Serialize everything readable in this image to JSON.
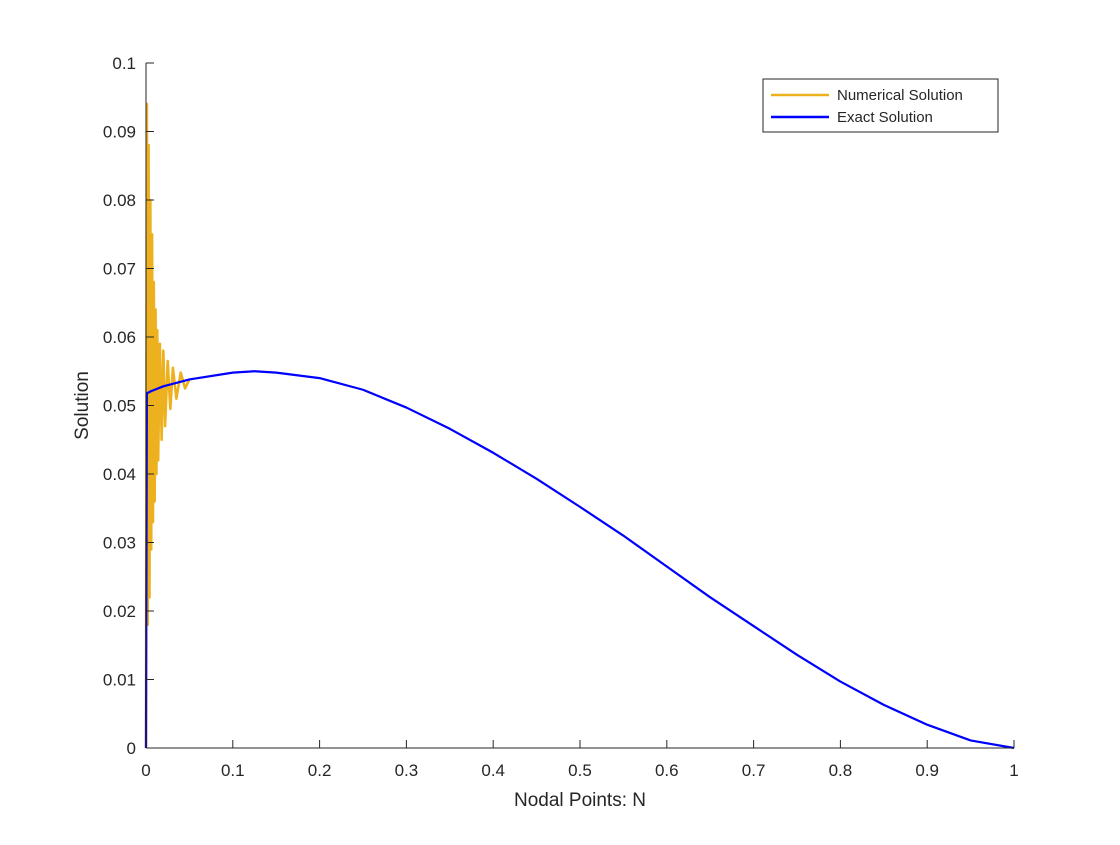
{
  "chart_data": {
    "type": "line",
    "title": "",
    "xlabel": "Nodal Points: N",
    "ylabel": "Solution",
    "xlim": [
      0,
      1
    ],
    "ylim": [
      0,
      0.1
    ],
    "grid": false,
    "legend_position": "top-right",
    "x_ticks": [
      "0",
      "0.1",
      "0.2",
      "0.3",
      "0.4",
      "0.5",
      "0.6",
      "0.7",
      "0.8",
      "0.9",
      "1"
    ],
    "y_ticks": [
      "0",
      "0.01",
      "0.02",
      "0.03",
      "0.04",
      "0.05",
      "0.06",
      "0.07",
      "0.08",
      "0.09",
      "0.1"
    ],
    "series": [
      {
        "name": "Numerical Solution",
        "color": "#EDB120",
        "note_values": "oscillating near x=0, envelope decays toward exact solution by x≈0.05",
        "x": [
          0,
          0.001,
          0.002,
          0.003,
          0.004,
          0.005,
          0.006,
          0.007,
          0.008,
          0.009,
          0.01,
          0.011,
          0.012,
          0.013,
          0.014,
          0.016,
          0.018,
          0.02,
          0.022,
          0.025,
          0.028,
          0.031,
          0.035,
          0.04,
          0.045,
          0.05
        ],
        "y": [
          0,
          0.094,
          0.018,
          0.088,
          0.022,
          0.08,
          0.029,
          0.075,
          0.033,
          0.068,
          0.036,
          0.064,
          0.04,
          0.061,
          0.042,
          0.059,
          0.045,
          0.058,
          0.047,
          0.0565,
          0.0495,
          0.0555,
          0.051,
          0.0548,
          0.0525,
          0.0538
        ]
      },
      {
        "name": "Exact Solution",
        "color": "#0000FF",
        "x": [
          0,
          0.001,
          0.003,
          0.006,
          0.01,
          0.02,
          0.05,
          0.1,
          0.125,
          0.15,
          0.2,
          0.25,
          0.3,
          0.35,
          0.4,
          0.45,
          0.5,
          0.55,
          0.6,
          0.65,
          0.7,
          0.75,
          0.8,
          0.85,
          0.9,
          0.95,
          1.0
        ],
        "y": [
          0,
          0.0518,
          0.0519,
          0.0521,
          0.0523,
          0.0528,
          0.0538,
          0.0548,
          0.055,
          0.0548,
          0.054,
          0.0523,
          0.0497,
          0.0466,
          0.0431,
          0.0393,
          0.0352,
          0.031,
          0.0265,
          0.022,
          0.0178,
          0.0136,
          0.0097,
          0.0063,
          0.0034,
          0.0011,
          0.0
        ]
      }
    ]
  }
}
